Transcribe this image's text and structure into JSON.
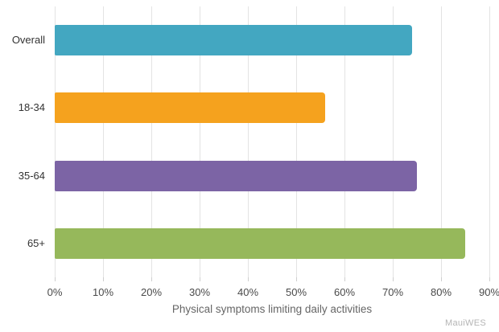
{
  "watermark": "MauiWES",
  "chart_data": {
    "type": "bar",
    "orientation": "horizontal",
    "title": "",
    "xlabel": "Physical symptoms limiting daily activities",
    "ylabel": "",
    "categories": [
      "Overall",
      "18-34",
      "35-64",
      "65+"
    ],
    "values": [
      74,
      56,
      75,
      85
    ],
    "unit": "%",
    "bar_colors": [
      "#43a7c1",
      "#f5a21e",
      "#7c64a5",
      "#96b85b"
    ],
    "xlim": [
      0,
      90
    ],
    "tick_step": 10,
    "tick_labels": [
      "0%",
      "10%",
      "20%",
      "30%",
      "40%",
      "50%",
      "60%",
      "70%",
      "80%",
      "90%"
    ],
    "grid": true,
    "legend": false,
    "colors": {
      "background": "#ffffff",
      "gridline": "#e3e3e3",
      "tick_mark": "#cfcfcf",
      "tick_label": "#4a4a4a",
      "category_label": "#333333",
      "axis_title": "#666666",
      "watermark": "#b5b5b5"
    }
  }
}
